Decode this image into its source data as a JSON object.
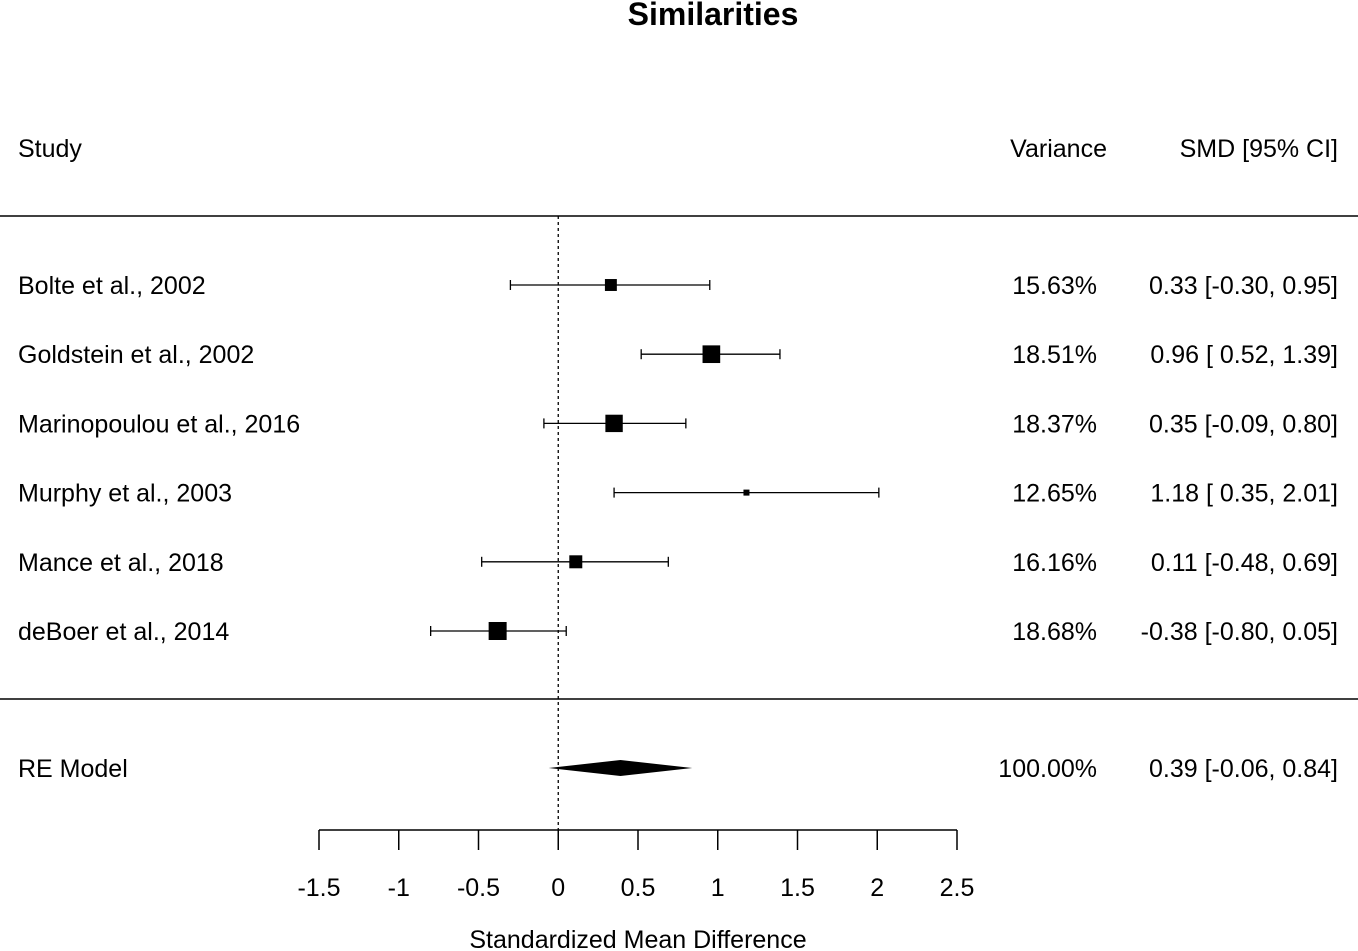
{
  "chart_data": {
    "type": "forest",
    "title": "Similarities",
    "xlabel": "Standardized Mean Difference",
    "headers": {
      "study": "Study",
      "weight": "Variance",
      "estimate": "SMD [95% CI]"
    },
    "xlim": [
      -1.5,
      2.5
    ],
    "xticks": [
      -1.5,
      -1,
      -0.5,
      0,
      0.5,
      1,
      1.5,
      2,
      2.5
    ],
    "xtick_labels": [
      "-1.5",
      "-1",
      "-0.5",
      "0",
      "0.5",
      "1",
      "1.5",
      "2",
      "2.5"
    ],
    "reference_line": 0,
    "studies": [
      {
        "name": "Bolte et al., 2002",
        "smd": 0.33,
        "lo": -0.3,
        "hi": 0.95,
        "weight": "15.63%",
        "ci_text": "0.33 [-0.30, 0.95]"
      },
      {
        "name": "Goldstein et al., 2002",
        "smd": 0.96,
        "lo": 0.52,
        "hi": 1.39,
        "weight": "18.51%",
        "ci_text": "0.96 [ 0.52, 1.39]"
      },
      {
        "name": "Marinopoulou et al., 2016",
        "smd": 0.35,
        "lo": -0.09,
        "hi": 0.8,
        "weight": "18.37%",
        "ci_text": "0.35 [-0.09, 0.80]"
      },
      {
        "name": "Murphy et al., 2003",
        "smd": 1.18,
        "lo": 0.35,
        "hi": 2.01,
        "weight": "12.65%",
        "ci_text": "1.18 [ 0.35, 2.01]"
      },
      {
        "name": "Mance et al., 2018",
        "smd": 0.11,
        "lo": -0.48,
        "hi": 0.69,
        "weight": "16.16%",
        "ci_text": "0.11 [-0.48, 0.69]"
      },
      {
        "name": "deBoer et al., 2014",
        "smd": -0.38,
        "lo": -0.8,
        "hi": 0.05,
        "weight": "18.68%",
        "ci_text": "-0.38 [-0.80, 0.05]"
      }
    ],
    "summary": {
      "name": "RE Model",
      "smd": 0.39,
      "lo": -0.06,
      "hi": 0.84,
      "weight": "100.00%",
      "ci_text": "0.39 [-0.06, 0.84]"
    }
  }
}
